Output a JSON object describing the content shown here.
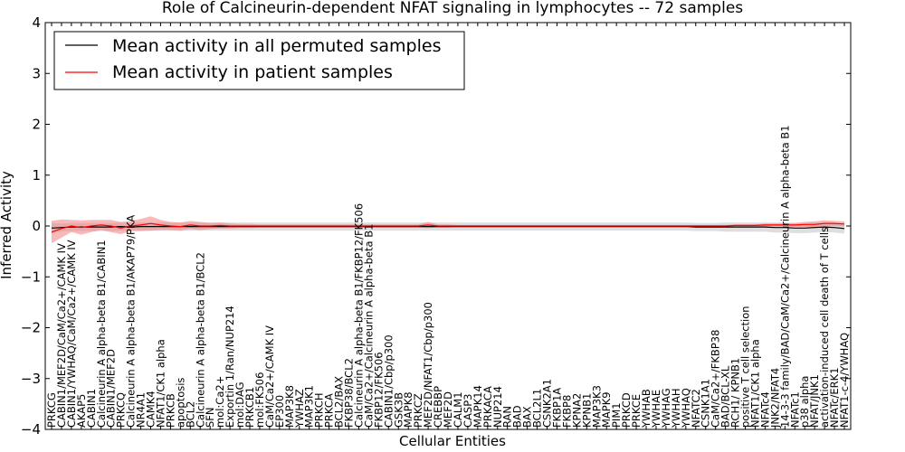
{
  "chart_data": {
    "type": "line",
    "title": "Role of Calcineurin-dependent NFAT signaling in lymphocytes -- 72 samples",
    "xlabel": "Cellular Entities",
    "ylabel": "Inferred Activity",
    "ylim": [
      -4,
      4
    ],
    "yticks": [
      -4,
      -3,
      -2,
      -1,
      0,
      1,
      2,
      3,
      4
    ],
    "legend_position": "top-left",
    "colors": {
      "permuted": "#000000",
      "patient": "#ff0000",
      "permuted_band": "#c8c8c8",
      "patient_band": "#f08080"
    },
    "categories": [
      "PRKCG",
      "CABIN1/MEF2D/CaM/Ca2+/CAMK IV",
      "CABIN1/YWHAQ/CaM/Ca2+/CAMK IV",
      "AKAP5",
      "CABIN1",
      "Calcineurin A alpha-beta B1/CABIN1",
      "CABIN1/MEF2D",
      "PRKCQ",
      "Calcineurin A alpha-beta B1/AKAP79/PKA",
      "NR4A1",
      "CAMK4",
      "NFAT1/CK1 alpha",
      "PRKCB",
      "apoptosis",
      "BCL2",
      "Calcineurin A alpha-beta B1/BCL2",
      "SFN",
      "mol:Ca2+",
      "Exportin 1/Ran/NUP214",
      "mol:DAG",
      "PRKCB1",
      "mol:FK506",
      "CaM/Ca2+/CAMK IV",
      "EP300",
      "MAP3K8",
      "YWHAZ",
      "MAP3K1",
      "PRKCH",
      "PRKCA",
      "BCL2/BAX",
      "FKBP38/BCL2",
      "Calcineurin A alpha-beta B1/FKBP12/FK506",
      "CaM/Ca2+/Calcineurin A alpha-beta B1",
      "FKBP12/FK506",
      "CABIN1/Cbp/p300",
      "GSK3B",
      "MAPK8",
      "PRKCZ",
      "MEF2D/NFAT1/Cbp/p300",
      "CREBBP",
      "MEF2D",
      "CALM1",
      "CASP3",
      "MAPK14",
      "PRKACA",
      "NUP214",
      "RAN",
      "BAD",
      "BAX",
      "BCL2L1",
      "CSNK2A1",
      "FKBP1A",
      "FKBP8",
      "KPNA2",
      "KPNB1",
      "MAP3K3",
      "MAPK9",
      "PIM1",
      "PRKCD",
      "PRKCE",
      "YWHAB",
      "YWHAE",
      "YWHAG",
      "YWHAH",
      "YWHAQ",
      "NFATC2",
      "CSNK1A1",
      "CaM/Ca2+/FKBP38",
      "BAD/BCL-XL",
      "RCH1/ KPNB1",
      "positive T cell selection",
      "NFAT1/CK1 alpha",
      "NFATc4",
      "JNK2/NFAT4",
      "14-3-3 family/BAD/CaM/Ca2+/Calcineurin A alpha-beta B1",
      "NFATc1",
      "p38 alpha",
      "NFAT/JNK1",
      "activation-induced cell death of T cells",
      "NFATc/ERK1",
      "NFAT1-c-4/YWHAQ"
    ],
    "series": [
      {
        "name": "Mean activity in all permuted samples",
        "values": [
          -0.04,
          -0.03,
          -0.02,
          -0.02,
          -0.02,
          -0.02,
          -0.02,
          -0.01,
          -0.02,
          -0.01,
          -0.01,
          -0.01,
          -0.01,
          -0.01,
          -0.01,
          -0.01,
          -0.01,
          -0.01,
          -0.01,
          -0.01,
          -0.01,
          -0.01,
          -0.01,
          -0.01,
          -0.01,
          -0.01,
          -0.01,
          -0.01,
          -0.01,
          -0.01,
          -0.01,
          -0.01,
          -0.01,
          -0.01,
          -0.01,
          -0.01,
          -0.01,
          -0.01,
          -0.01,
          -0.01,
          -0.01,
          -0.01,
          -0.01,
          -0.01,
          -0.01,
          -0.01,
          -0.01,
          -0.01,
          -0.01,
          -0.01,
          -0.01,
          -0.01,
          -0.01,
          -0.01,
          -0.01,
          -0.01,
          -0.01,
          -0.01,
          -0.01,
          -0.01,
          -0.01,
          -0.01,
          -0.01,
          -0.01,
          -0.01,
          -0.02,
          -0.02,
          -0.02,
          -0.02,
          -0.02,
          -0.02,
          -0.02,
          -0.02,
          -0.03,
          -0.03,
          -0.04,
          -0.04,
          -0.03,
          -0.02,
          -0.03,
          -0.05
        ],
        "band": [
          0.1,
          0.08,
          0.08,
          0.08,
          0.08,
          0.08,
          0.08,
          0.08,
          0.08,
          0.08,
          0.08,
          0.08,
          0.08,
          0.08,
          0.08,
          0.08,
          0.08,
          0.08,
          0.08,
          0.08,
          0.08,
          0.08,
          0.08,
          0.08,
          0.08,
          0.08,
          0.08,
          0.08,
          0.08,
          0.08,
          0.08,
          0.08,
          0.08,
          0.08,
          0.08,
          0.08,
          0.08,
          0.08,
          0.08,
          0.08,
          0.08,
          0.08,
          0.08,
          0.08,
          0.08,
          0.08,
          0.08,
          0.08,
          0.08,
          0.08,
          0.08,
          0.08,
          0.08,
          0.08,
          0.08,
          0.08,
          0.08,
          0.08,
          0.08,
          0.08,
          0.08,
          0.08,
          0.08,
          0.08,
          0.08,
          0.08,
          0.08,
          0.08,
          0.09,
          0.09,
          0.09,
          0.09,
          0.09,
          0.1,
          0.1,
          0.1,
          0.1,
          0.1,
          0.1,
          0.1,
          0.1
        ]
      },
      {
        "name": "Mean activity in patient samples",
        "values": [
          -0.12,
          -0.05,
          0.0,
          -0.03,
          0.0,
          0.02,
          0.0,
          -0.04,
          0.0,
          0.02,
          0.05,
          0.02,
          0.0,
          -0.01,
          0.02,
          0.0,
          0.0,
          0.01,
          0.0,
          0.0,
          0.0,
          0.0,
          0.0,
          0.0,
          0.0,
          0.0,
          0.0,
          0.0,
          0.0,
          0.0,
          0.0,
          0.0,
          0.0,
          0.0,
          0.0,
          0.0,
          0.0,
          0.0,
          0.02,
          0.0,
          0.0,
          0.0,
          0.0,
          0.0,
          0.0,
          0.0,
          0.0,
          0.0,
          0.0,
          0.0,
          0.0,
          0.0,
          0.0,
          0.0,
          0.0,
          0.0,
          0.0,
          0.0,
          0.0,
          0.0,
          0.0,
          0.0,
          0.0,
          0.0,
          0.0,
          0.0,
          0.0,
          0.0,
          0.0,
          0.01,
          0.01,
          0.01,
          0.02,
          0.02,
          0.02,
          0.02,
          0.03,
          0.03,
          0.05,
          0.05,
          0.04
        ],
        "band": [
          0.22,
          0.18,
          0.12,
          0.14,
          0.12,
          0.1,
          0.12,
          0.12,
          0.1,
          0.12,
          0.14,
          0.1,
          0.08,
          0.08,
          0.08,
          0.08,
          0.06,
          0.06,
          0.05,
          0.04,
          0.04,
          0.03,
          0.03,
          0.03,
          0.03,
          0.03,
          0.03,
          0.03,
          0.03,
          0.03,
          0.03,
          0.03,
          0.03,
          0.03,
          0.03,
          0.03,
          0.03,
          0.03,
          0.06,
          0.03,
          0.03,
          0.02,
          0.02,
          0.02,
          0.02,
          0.02,
          0.02,
          0.02,
          0.02,
          0.02,
          0.02,
          0.02,
          0.02,
          0.02,
          0.02,
          0.02,
          0.02,
          0.02,
          0.02,
          0.02,
          0.02,
          0.02,
          0.02,
          0.02,
          0.02,
          0.02,
          0.02,
          0.02,
          0.02,
          0.02,
          0.02,
          0.02,
          0.03,
          0.03,
          0.03,
          0.04,
          0.05,
          0.06,
          0.06,
          0.05,
          0.05
        ]
      }
    ]
  }
}
